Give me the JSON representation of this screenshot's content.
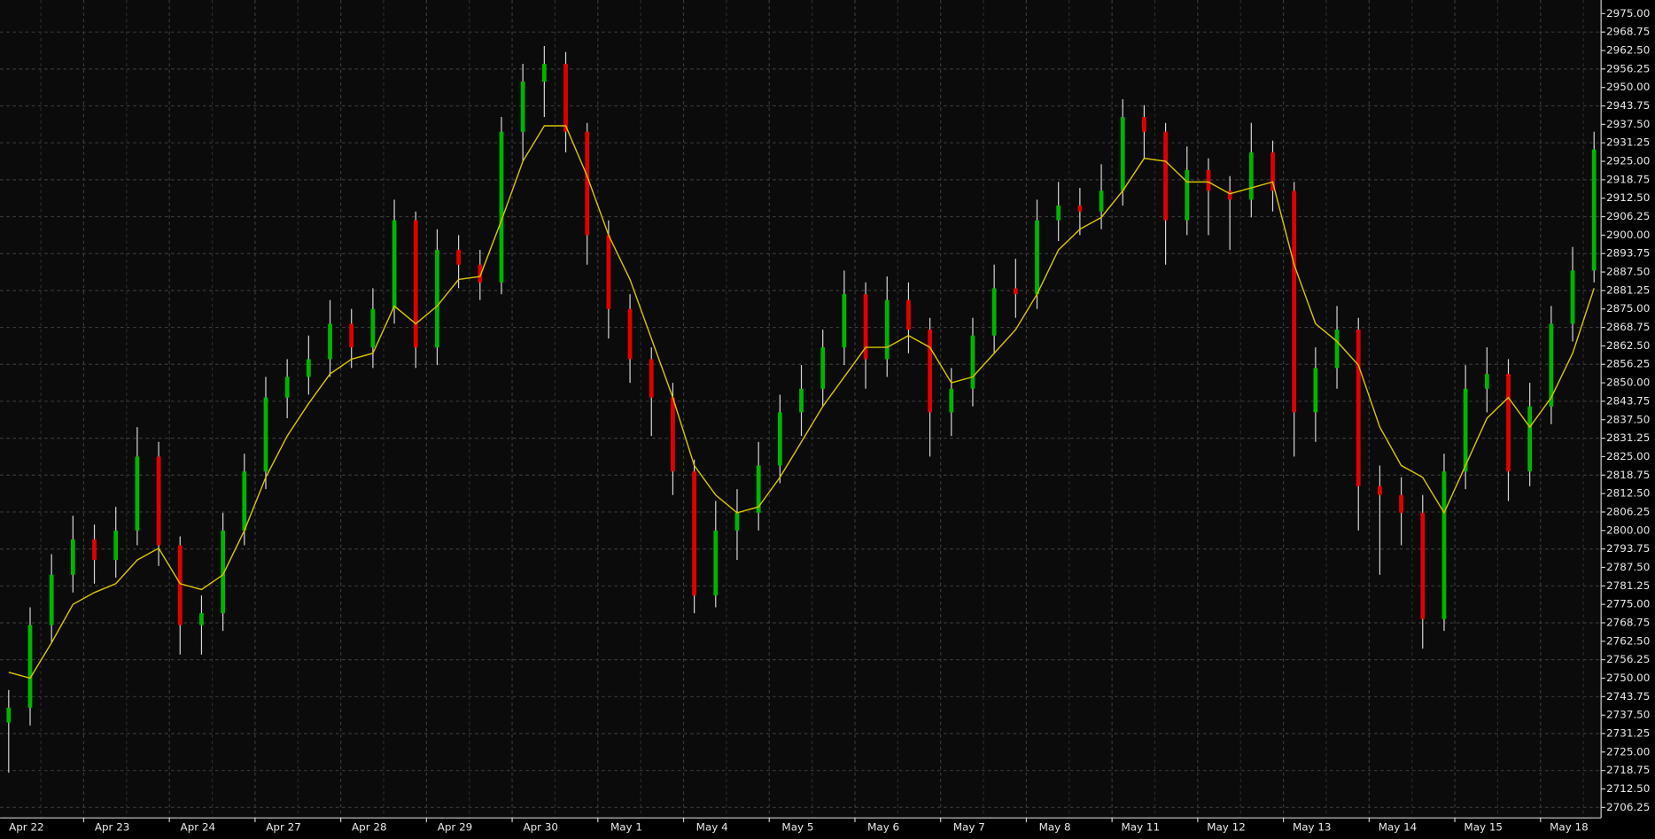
{
  "chart_data": {
    "type": "candlestick",
    "categories": [
      "Apr 22",
      null,
      null,
      null,
      "Apr 23",
      null,
      null,
      null,
      "Apr 24",
      null,
      null,
      null,
      "Apr 27",
      null,
      null,
      null,
      "Apr 28",
      null,
      null,
      null,
      "Apr 29",
      null,
      null,
      null,
      "Apr 30",
      null,
      null,
      null,
      "May 1",
      null,
      null,
      null,
      "May 4",
      null,
      null,
      null,
      "May 5",
      null,
      null,
      null,
      "May 6",
      null,
      null,
      null,
      "May 7",
      null,
      null,
      null,
      "May 8",
      null,
      null,
      null,
      "May 11",
      null,
      null,
      null,
      "May 12",
      null,
      null,
      null,
      "May 13",
      null,
      null,
      null,
      "May 14",
      null,
      null,
      null,
      "May 15",
      null,
      null,
      null,
      "May 18",
      null,
      null
    ],
    "open": [
      2735,
      2740,
      2768,
      2785,
      2797,
      2790,
      2800,
      2825,
      2795,
      2768,
      2772,
      2800,
      2820,
      2845,
      2852,
      2858,
      2870,
      2862,
      2875,
      2905,
      2862,
      2895,
      2890,
      2884,
      2935,
      2952,
      2958,
      2935,
      2900,
      2875,
      2858,
      2845,
      2820,
      2778,
      2800,
      2806,
      2822,
      2840,
      2848,
      2862,
      2880,
      2858,
      2878,
      2868,
      2840,
      2848,
      2866,
      2882,
      2880,
      2905,
      2910,
      2908,
      2915,
      2940,
      2935,
      2905,
      2922,
      2915,
      2912,
      2928,
      2915,
      2840,
      2855,
      2868,
      2815,
      2812,
      2806,
      2770,
      2820,
      2848,
      2853,
      2820,
      2842,
      2870,
      2888
    ],
    "high": [
      2746,
      2774,
      2792,
      2805,
      2802,
      2808,
      2835,
      2830,
      2798,
      2778,
      2806,
      2826,
      2852,
      2858,
      2866,
      2878,
      2875,
      2882,
      2912,
      2908,
      2902,
      2900,
      2895,
      2940,
      2958,
      2964,
      2962,
      2938,
      2905,
      2880,
      2862,
      2850,
      2824,
      2810,
      2814,
      2830,
      2846,
      2856,
      2868,
      2888,
      2884,
      2886,
      2884,
      2872,
      2855,
      2872,
      2890,
      2892,
      2912,
      2918,
      2916,
      2924,
      2946,
      2944,
      2938,
      2930,
      2926,
      2920,
      2938,
      2932,
      2918,
      2862,
      2876,
      2872,
      2822,
      2818,
      2812,
      2826,
      2856,
      2862,
      2858,
      2850,
      2876,
      2896,
      2935
    ],
    "low": [
      2718,
      2734,
      2762,
      2779,
      2782,
      2784,
      2795,
      2788,
      2758,
      2758,
      2766,
      2795,
      2814,
      2838,
      2846,
      2852,
      2855,
      2855,
      2870,
      2855,
      2856,
      2882,
      2878,
      2880,
      2925,
      2940,
      2928,
      2890,
      2865,
      2850,
      2832,
      2812,
      2772,
      2774,
      2790,
      2800,
      2816,
      2832,
      2842,
      2856,
      2848,
      2852,
      2860,
      2825,
      2832,
      2842,
      2860,
      2872,
      2875,
      2898,
      2900,
      2902,
      2910,
      2926,
      2890,
      2900,
      2900,
      2895,
      2906,
      2908,
      2825,
      2830,
      2848,
      2800,
      2785,
      2795,
      2760,
      2766,
      2814,
      2840,
      2810,
      2815,
      2836,
      2864,
      2884
    ],
    "close": [
      2740,
      2768,
      2785,
      2797,
      2790,
      2800,
      2825,
      2795,
      2768,
      2772,
      2800,
      2820,
      2845,
      2852,
      2858,
      2870,
      2862,
      2875,
      2905,
      2862,
      2895,
      2890,
      2884,
      2935,
      2952,
      2958,
      2935,
      2900,
      2875,
      2858,
      2845,
      2820,
      2778,
      2800,
      2806,
      2822,
      2840,
      2848,
      2862,
      2880,
      2858,
      2878,
      2868,
      2840,
      2848,
      2866,
      2882,
      2880,
      2905,
      2910,
      2908,
      2915,
      2940,
      2935,
      2905,
      2922,
      2915,
      2912,
      2928,
      2915,
      2840,
      2855,
      2868,
      2815,
      2812,
      2806,
      2770,
      2820,
      2848,
      2853,
      2820,
      2842,
      2870,
      2888,
      2929
    ],
    "up_color": "#00b400",
    "down_color": "#e00000",
    "wick_color": "#d8d8d8",
    "moving_average": {
      "color": "#d8c400",
      "values": [
        2752,
        2750,
        2762,
        2775,
        2779,
        2782,
        2790,
        2794,
        2782,
        2780,
        2785,
        2800,
        2818,
        2832,
        2843,
        2853,
        2858,
        2860,
        2876,
        2870,
        2876,
        2885,
        2886,
        2905,
        2925,
        2937,
        2937,
        2920,
        2900,
        2885,
        2865,
        2845,
        2822,
        2812,
        2806,
        2808,
        2818,
        2830,
        2842,
        2852,
        2862,
        2862,
        2866,
        2862,
        2850,
        2852,
        2860,
        2868,
        2880,
        2895,
        2902,
        2906,
        2915,
        2926,
        2925,
        2918,
        2918,
        2914,
        2916,
        2918,
        2890,
        2870,
        2864,
        2856,
        2835,
        2822,
        2818,
        2806,
        2822,
        2838,
        2845,
        2835,
        2845,
        2860,
        2882
      ]
    },
    "ylim": [
      2702.7,
      2979.6
    ],
    "yticks": [
      {
        "value": 2706.25,
        "label": "2706.25"
      },
      {
        "value": 2712.5,
        "label": "2712.50"
      },
      {
        "value": 2718.75,
        "label": "2718.75"
      },
      {
        "value": 2725,
        "label": "2725.00"
      },
      {
        "value": 2731.25,
        "label": "2731.25"
      },
      {
        "value": 2737.5,
        "label": "2737.50"
      },
      {
        "value": 2743.75,
        "label": "2743.75"
      },
      {
        "value": 2750,
        "label": "2750.00"
      },
      {
        "value": 2756.25,
        "label": "2756.25"
      },
      {
        "value": 2762.5,
        "label": "2762.50"
      },
      {
        "value": 2768.75,
        "label": "2768.75"
      },
      {
        "value": 2775,
        "label": "2775.00"
      },
      {
        "value": 2781.25,
        "label": "2781.25"
      },
      {
        "value": 2787.5,
        "label": "2787.50"
      },
      {
        "value": 2793.75,
        "label": "2793.75"
      },
      {
        "value": 2800,
        "label": "2800.00"
      },
      {
        "value": 2806.25,
        "label": "2806.25"
      },
      {
        "value": 2812.5,
        "label": "2812.50"
      },
      {
        "value": 2818.75,
        "label": "2818.75"
      },
      {
        "value": 2825,
        "label": "2825.00"
      },
      {
        "value": 2831.25,
        "label": "2831.25"
      },
      {
        "value": 2837.5,
        "label": "2837.50"
      },
      {
        "value": 2843.75,
        "label": "2843.75"
      },
      {
        "value": 2850,
        "label": "2850.00"
      },
      {
        "value": 2856.25,
        "label": "2856.25"
      },
      {
        "value": 2862.5,
        "label": "2862.50"
      },
      {
        "value": 2868.75,
        "label": "2868.75"
      },
      {
        "value": 2875,
        "label": "2875.00"
      },
      {
        "value": 2881.25,
        "label": "2881.25"
      },
      {
        "value": 2887.5,
        "label": "2887.50"
      },
      {
        "value": 2893.75,
        "label": "2893.75"
      },
      {
        "value": 2900,
        "label": "2900.00"
      },
      {
        "value": 2906.25,
        "label": "2906.25"
      },
      {
        "value": 2912.5,
        "label": "2912.50"
      },
      {
        "value": 2918.75,
        "label": "2918.75"
      },
      {
        "value": 2925,
        "label": "2925.00"
      },
      {
        "value": 2931.25,
        "label": "2931.25"
      },
      {
        "value": 2937.5,
        "label": "2937.50"
      },
      {
        "value": 2943.75,
        "label": "2943.75"
      },
      {
        "value": 2950,
        "label": "2950.00"
      },
      {
        "value": 2956.25,
        "label": "2956.25"
      },
      {
        "value": 2962.5,
        "label": "2962.50"
      },
      {
        "value": 2968.75,
        "label": "2968.75"
      },
      {
        "value": 2975,
        "label": "2975.00"
      }
    ],
    "grid": true
  }
}
